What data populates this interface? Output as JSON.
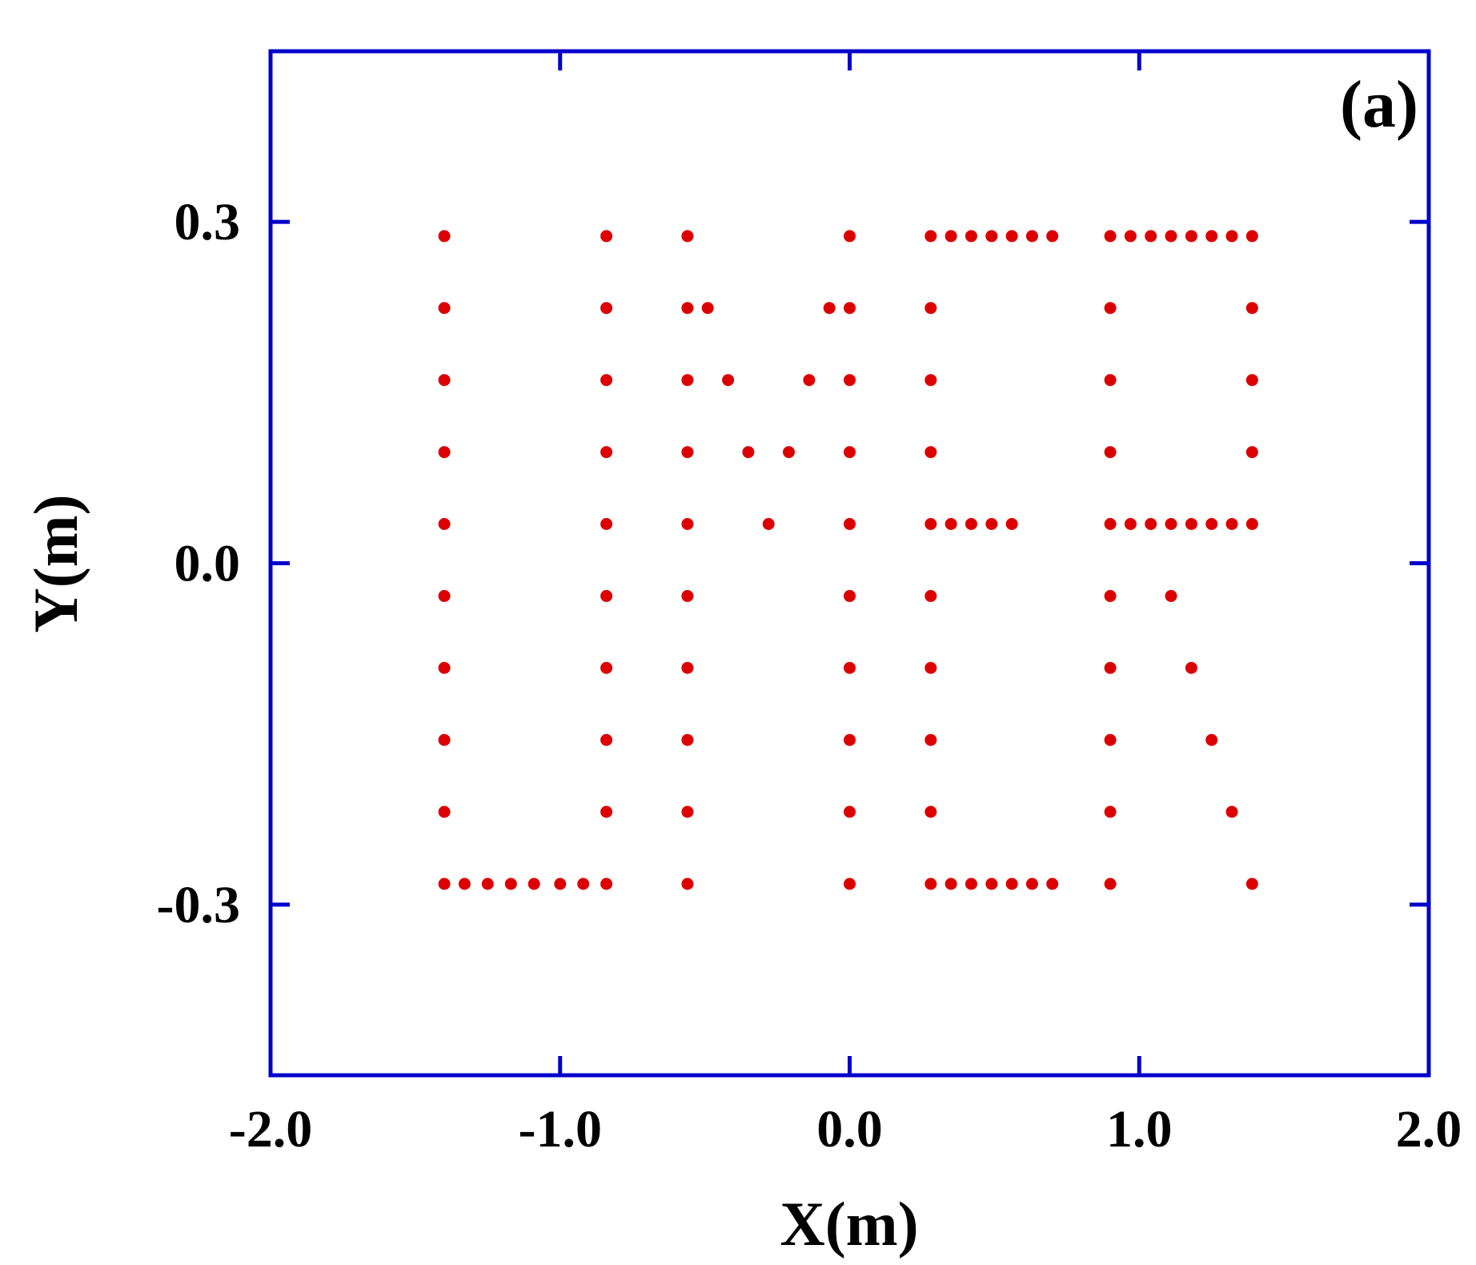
{
  "chart_data": {
    "type": "scatter",
    "panel_label": "(a)",
    "xlabel": "X(m)",
    "ylabel": "Y(m)",
    "xlim": [
      -2.0,
      2.0
    ],
    "ylim": [
      -0.45,
      0.45
    ],
    "xticks": [
      -2.0,
      -1.0,
      0.0,
      1.0,
      2.0
    ],
    "xtick_labels": [
      "-2.0",
      "-1.0",
      "0.0",
      "1.0",
      "2.0"
    ],
    "yticks": [
      -0.3,
      0.0,
      0.3
    ],
    "ytick_labels": [
      "-0.3",
      "0.0",
      "0.3"
    ],
    "grid": false,
    "frame_color": "#0000cc",
    "marker_color": "#dd0000",
    "series": [
      {
        "points": [
          [
            -1.4,
            0.2875
          ],
          [
            -1.4,
            0.2243
          ],
          [
            -1.4,
            0.161
          ],
          [
            -1.4,
            0.0977
          ],
          [
            -1.4,
            0.0345
          ],
          [
            -1.4,
            -0.0288
          ],
          [
            -1.4,
            -0.092
          ],
          [
            -1.4,
            -0.1553
          ],
          [
            -1.4,
            -0.2185
          ],
          [
            -1.4,
            -0.2818
          ],
          [
            -1.33,
            -0.2818
          ],
          [
            -1.25,
            -0.2818
          ],
          [
            -1.17,
            -0.2818
          ],
          [
            -1.09,
            -0.2818
          ],
          [
            -1.0,
            -0.2818
          ],
          [
            -0.92,
            -0.2818
          ],
          [
            -0.84,
            0.2875
          ],
          [
            -0.84,
            0.2243
          ],
          [
            -0.84,
            0.161
          ],
          [
            -0.84,
            0.0977
          ],
          [
            -0.84,
            0.0345
          ],
          [
            -0.84,
            -0.0288
          ],
          [
            -0.84,
            -0.092
          ],
          [
            -0.84,
            -0.1553
          ],
          [
            -0.84,
            -0.2185
          ],
          [
            -0.84,
            -0.2818
          ],
          [
            -0.56,
            0.2875
          ],
          [
            -0.56,
            0.2243
          ],
          [
            -0.56,
            0.161
          ],
          [
            -0.56,
            0.0977
          ],
          [
            -0.56,
            0.0345
          ],
          [
            -0.56,
            -0.0288
          ],
          [
            -0.56,
            -0.092
          ],
          [
            -0.56,
            -0.1553
          ],
          [
            -0.56,
            -0.2185
          ],
          [
            -0.56,
            -0.2818
          ],
          [
            -0.49,
            0.2243
          ],
          [
            -0.42,
            0.161
          ],
          [
            -0.35,
            0.0977
          ],
          [
            -0.28,
            0.0345
          ],
          [
            -0.21,
            0.0977
          ],
          [
            -0.14,
            0.161
          ],
          [
            -0.07,
            0.2243
          ],
          [
            0.0,
            0.2875
          ],
          [
            0.0,
            0.2243
          ],
          [
            0.0,
            0.161
          ],
          [
            0.0,
            0.0977
          ],
          [
            0.0,
            0.0345
          ],
          [
            0.0,
            -0.0288
          ],
          [
            0.0,
            -0.092
          ],
          [
            0.0,
            -0.1553
          ],
          [
            0.0,
            -0.2185
          ],
          [
            0.0,
            -0.2818
          ],
          [
            0.28,
            0.2875
          ],
          [
            0.28,
            0.2243
          ],
          [
            0.28,
            0.161
          ],
          [
            0.28,
            0.0977
          ],
          [
            0.28,
            0.0345
          ],
          [
            0.28,
            -0.0288
          ],
          [
            0.28,
            -0.092
          ],
          [
            0.28,
            -0.1553
          ],
          [
            0.28,
            -0.2185
          ],
          [
            0.28,
            -0.2818
          ],
          [
            0.35,
            0.2875
          ],
          [
            0.42,
            0.2875
          ],
          [
            0.49,
            0.2875
          ],
          [
            0.56,
            0.2875
          ],
          [
            0.63,
            0.2875
          ],
          [
            0.7,
            0.2875
          ],
          [
            0.35,
            0.0345
          ],
          [
            0.42,
            0.0345
          ],
          [
            0.49,
            0.0345
          ],
          [
            0.56,
            0.0345
          ],
          [
            0.35,
            -0.2818
          ],
          [
            0.42,
            -0.2818
          ],
          [
            0.49,
            -0.2818
          ],
          [
            0.56,
            -0.2818
          ],
          [
            0.63,
            -0.2818
          ],
          [
            0.7,
            -0.2818
          ],
          [
            0.9,
            0.2875
          ],
          [
            0.9,
            0.2243
          ],
          [
            0.9,
            0.161
          ],
          [
            0.9,
            0.0977
          ],
          [
            0.9,
            0.0345
          ],
          [
            0.9,
            -0.0288
          ],
          [
            0.9,
            -0.092
          ],
          [
            0.9,
            -0.1553
          ],
          [
            0.9,
            -0.2185
          ],
          [
            0.9,
            -0.2818
          ],
          [
            0.97,
            0.2875
          ],
          [
            1.04,
            0.2875
          ],
          [
            1.11,
            0.2875
          ],
          [
            1.18,
            0.2875
          ],
          [
            1.25,
            0.2875
          ],
          [
            1.32,
            0.2875
          ],
          [
            1.39,
            0.2875
          ],
          [
            1.39,
            0.2243
          ],
          [
            1.39,
            0.161
          ],
          [
            1.39,
            0.0977
          ],
          [
            0.97,
            0.0345
          ],
          [
            1.04,
            0.0345
          ],
          [
            1.11,
            0.0345
          ],
          [
            1.18,
            0.0345
          ],
          [
            1.25,
            0.0345
          ],
          [
            1.32,
            0.0345
          ],
          [
            1.39,
            0.0345
          ],
          [
            1.11,
            -0.0288
          ],
          [
            1.18,
            -0.092
          ],
          [
            1.25,
            -0.1553
          ],
          [
            1.32,
            -0.2185
          ],
          [
            1.39,
            -0.2818
          ]
        ]
      }
    ]
  }
}
